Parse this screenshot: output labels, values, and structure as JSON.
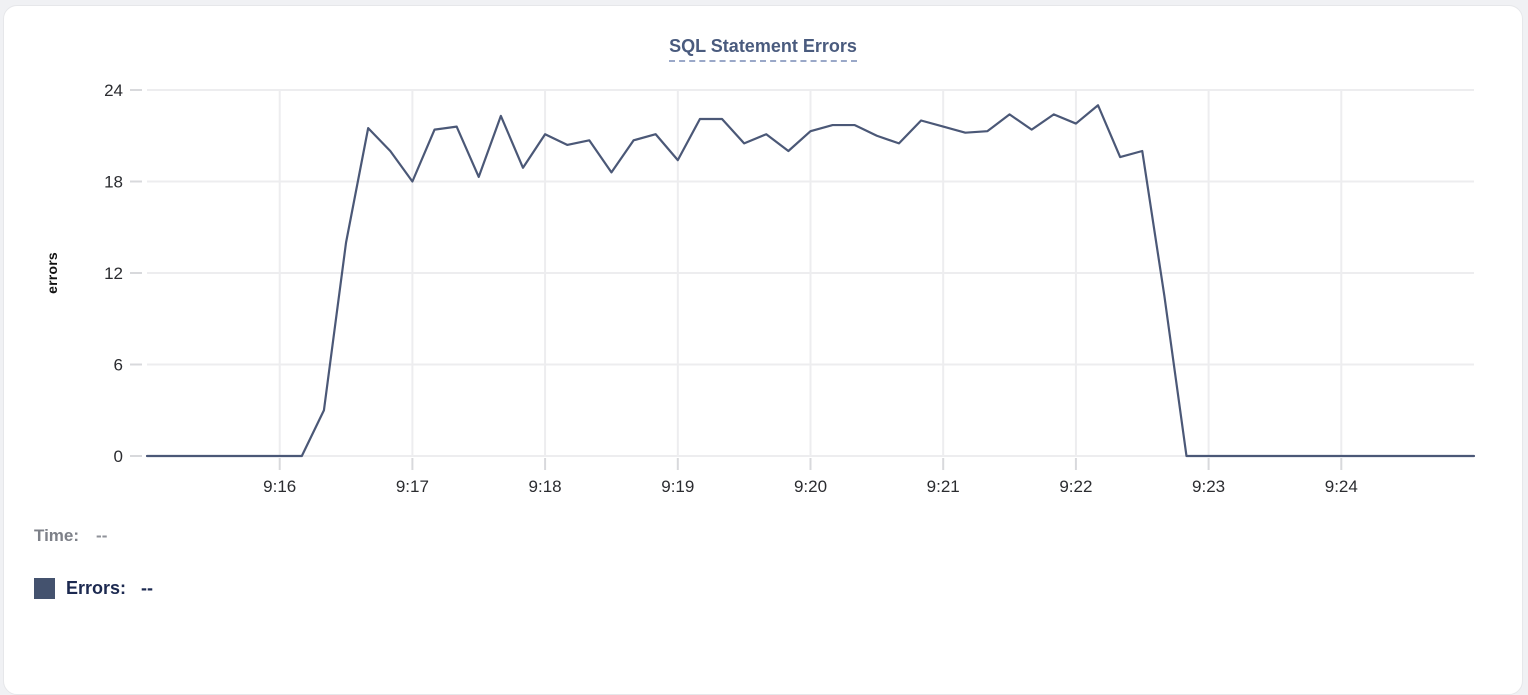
{
  "colors": {
    "title": "#4a5b7e",
    "title_underline": "#9aa8c8",
    "line": "#4b5877",
    "swatch": "#44526e",
    "grid": "#ededef",
    "tick": "#d8d9dc",
    "axis_text": "#2b2c30",
    "time_text": "#7d8088",
    "errors_text": "#1c2950"
  },
  "readout": {
    "time_label": "Time:",
    "time_value": "--",
    "errors_label": "Errors:",
    "errors_value": "--"
  },
  "chart_data": {
    "type": "line",
    "title": "SQL Statement Errors",
    "xlabel": "",
    "ylabel": "errors",
    "ylim": [
      0,
      24
    ],
    "yticks": [
      0,
      6,
      12,
      18,
      24
    ],
    "grid": true,
    "legend_position": "bottom-left",
    "x_domain_min": [
      15,
      25
    ],
    "x_start": "9:15:00",
    "x_end": "9:25:00",
    "interval_sec": 10,
    "xticks": [
      {
        "label": "9:16",
        "min": 16
      },
      {
        "label": "9:17",
        "min": 17
      },
      {
        "label": "9:18",
        "min": 18
      },
      {
        "label": "9:19",
        "min": 19
      },
      {
        "label": "9:20",
        "min": 20
      },
      {
        "label": "9:21",
        "min": 21
      },
      {
        "label": "9:22",
        "min": 22
      },
      {
        "label": "9:23",
        "min": 23
      },
      {
        "label": "9:24",
        "min": 24
      }
    ],
    "series": [
      {
        "name": "Errors",
        "color": "#4b5877",
        "values": [
          0,
          0,
          0,
          0,
          0,
          0,
          0,
          0,
          3,
          14,
          21.5,
          20,
          18,
          21.4,
          21.6,
          18.3,
          22.3,
          18.9,
          21.1,
          20.4,
          20.7,
          18.6,
          20.7,
          21.1,
          19.4,
          22.1,
          22.1,
          20.5,
          21.1,
          20.0,
          21.3,
          21.7,
          21.7,
          21.0,
          20.5,
          22.0,
          21.6,
          21.2,
          21.3,
          22.4,
          21.4,
          22.4,
          21.8,
          23.0,
          19.6,
          20.0,
          10.5,
          0,
          0,
          0,
          0,
          0,
          0,
          0,
          0,
          0,
          0,
          0,
          0,
          0,
          0
        ]
      }
    ]
  }
}
